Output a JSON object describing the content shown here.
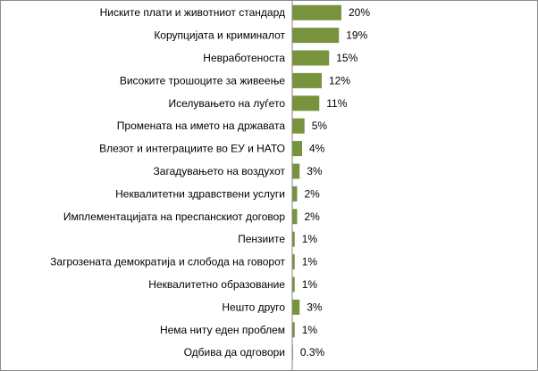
{
  "chart_data": {
    "type": "bar",
    "orientation": "horizontal",
    "categories": [
      "Ниските плати и животниот стандард",
      "Корупцијата и криминалот",
      "Невработеноста",
      "Високите трошоците за живеење",
      "Иселувањето на луѓето ",
      "Промената на името на државата",
      "Влезот и интеграциите во ЕУ и НАТО",
      "Загадувањето  на воздухот",
      "Неквалитетни здравствени услуги",
      "Имплементацијата на преспанскиот договор",
      "Пензиите",
      "Загрозената демократија и слобода на говорот",
      "Неквалитетно образование",
      "Нешто друго",
      "Нема ниту  еден проблем",
      "Одбива да одговори"
    ],
    "values": [
      20,
      19,
      15,
      12,
      11,
      5,
      4,
      3,
      2,
      2,
      1,
      1,
      1,
      3,
      1,
      0.3
    ],
    "data_labels": [
      "20%",
      "19%",
      "15%",
      "12%",
      "11%",
      "5%",
      "4%",
      "3%",
      "2%",
      "2%",
      "1%",
      "1%",
      "1%",
      "3%",
      "1%",
      "0.3%"
    ],
    "title": "",
    "xlabel": "",
    "ylabel": "",
    "xlim": [
      0,
      20
    ],
    "grid": false,
    "legend": "none",
    "colors": {
      "bar": "#77933c",
      "axis": "#868686",
      "frame": "#8c8c8c"
    }
  }
}
